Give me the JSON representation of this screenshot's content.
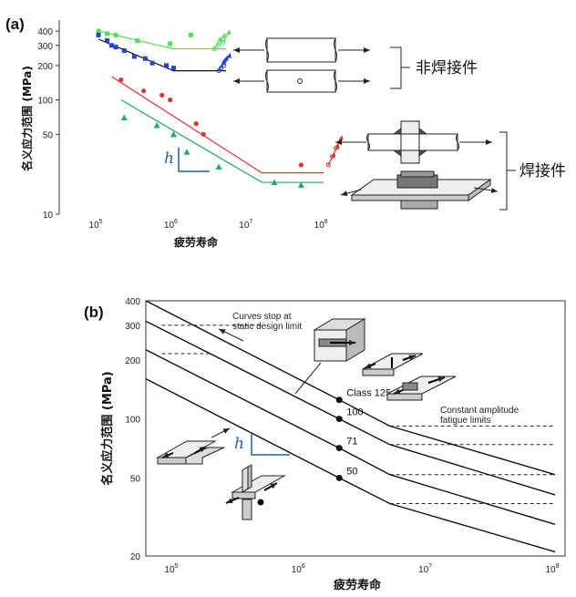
{
  "chart_data": [
    {
      "panel": "(a)",
      "type": "scatter",
      "scale": "log-log",
      "xlabel": "疲劳寿命",
      "ylabel": "名义应力范围 (MPa)",
      "xlim": [
        30000,
        200000000
      ],
      "ylim": [
        10,
        500
      ],
      "xticks": [
        {
          "v": 100000,
          "b": "10",
          "e": "5"
        },
        {
          "v": 1000000,
          "b": "10",
          "e": "6"
        },
        {
          "v": 10000000,
          "b": "10",
          "e": "7"
        },
        {
          "v": 100000000,
          "b": "10",
          "e": "8"
        }
      ],
      "yticks": [
        {
          "v": 10,
          "t": "10"
        },
        {
          "v": 50,
          "t": "50"
        },
        {
          "v": 100,
          "t": "100"
        },
        {
          "v": 200,
          "t": "200"
        },
        {
          "v": 300,
          "t": "300"
        },
        {
          "v": 400,
          "t": "400"
        }
      ],
      "series": [
        {
          "color": "#55dd55",
          "marker": "square",
          "points": [
            [
              100000,
              400
            ],
            [
              130000,
              380
            ],
            [
              170000,
              370
            ],
            [
              330000,
              330
            ],
            [
              900000,
              310
            ],
            [
              1700000,
              370
            ]
          ],
          "fit": [
            [
              100000,
              400
            ],
            [
              1000000,
              280
            ],
            [
              5000000,
              280
            ]
          ],
          "runouts": [
            [
              3500000,
              280
            ],
            [
              4000000,
              300
            ],
            [
              4600000,
              320
            ]
          ]
        },
        {
          "color": "#2244cc",
          "marker": "square",
          "points": [
            [
              100000,
              370
            ],
            [
              130000,
              330
            ],
            [
              150000,
              300
            ],
            [
              170000,
              290
            ],
            [
              220000,
              270
            ],
            [
              300000,
              240
            ],
            [
              420000,
              230
            ],
            [
              520000,
              210
            ],
            [
              800000,
              200
            ],
            [
              1000000,
              190
            ]
          ],
          "fit": [
            [
              100000,
              340
            ],
            [
              1000000,
              180
            ],
            [
              5000000,
              180
            ]
          ],
          "runouts": [
            [
              4000000,
              180
            ],
            [
              4300000,
              190
            ],
            [
              4700000,
              200
            ]
          ]
        },
        {
          "color": "#dd3333",
          "marker": "circle",
          "points": [
            [
              200000,
              150
            ],
            [
              400000,
              120
            ],
            [
              700000,
              110
            ],
            [
              900000,
              100
            ],
            [
              2000000,
              62
            ],
            [
              2500000,
              50
            ],
            [
              50000000,
              27
            ]
          ],
          "fit": [
            [
              150000,
              160
            ],
            [
              15000000,
              23
            ],
            [
              100000000,
              23
            ]
          ],
          "runouts": [
            [
              115000000,
              27
            ],
            [
              130000000,
              32
            ],
            [
              145000000,
              38
            ]
          ]
        },
        {
          "color": "#22aa66",
          "marker": "triangle",
          "points": [
            [
              220000,
              70
            ],
            [
              600000,
              60
            ],
            [
              1000000,
              50
            ],
            [
              1500000,
              35
            ],
            [
              4000000,
              26
            ],
            [
              22000000,
              19
            ],
            [
              50000000,
              18
            ]
          ],
          "fit": [
            [
              200000,
              100
            ],
            [
              15000000,
              19
            ],
            [
              100000000,
              19
            ]
          ],
          "runouts": []
        }
      ],
      "annotations": [
        "h"
      ],
      "group_labels": [
        "非焊接件",
        "焊接件"
      ]
    },
    {
      "panel": "(b)",
      "type": "line",
      "scale": "log-log",
      "xlabel": "疲劳寿命",
      "ylabel": "名义应力范围 (MPa)",
      "xlim": [
        60000,
        120000000
      ],
      "ylim": [
        20,
        400
      ],
      "xticks": [
        {
          "v": 100000,
          "b": "10",
          "e": "5"
        },
        {
          "v": 1000000,
          "b": "10",
          "e": "6"
        },
        {
          "v": 10000000,
          "b": "10",
          "e": "7"
        },
        {
          "v": 100000000,
          "b": "10",
          "e": "8"
        }
      ],
      "yticks": [
        {
          "v": 20,
          "t": "20"
        },
        {
          "v": 50,
          "t": "50"
        },
        {
          "v": 100,
          "t": "100"
        },
        {
          "v": 200,
          "t": "200"
        },
        {
          "v": 300,
          "t": "300"
        },
        {
          "v": 400,
          "t": "400"
        }
      ],
      "series": [
        {
          "name": "Class 125",
          "points": [
            [
              60000,
              400
            ],
            [
              2000000,
              125
            ],
            [
              5000000,
              92
            ],
            [
              100000000,
              52
            ]
          ],
          "dot": [
            2000000,
            125
          ],
          "cutoff": [
            [
              5000000,
              92
            ],
            [
              100000000,
              92
            ]
          ]
        },
        {
          "name": "100",
          "points": [
            [
              60000,
              315
            ],
            [
              2000000,
              100
            ],
            [
              5000000,
              74
            ],
            [
              100000000,
              41
            ]
          ],
          "dot": [
            2000000,
            100
          ],
          "cutoff": [
            [
              5000000,
              74
            ],
            [
              100000000,
              74
            ]
          ]
        },
        {
          "name": "71",
          "points": [
            [
              60000,
              225
            ],
            [
              2000000,
              71
            ],
            [
              5000000,
              52
            ],
            [
              100000000,
              29
            ]
          ],
          "dot": [
            2000000,
            71
          ],
          "cutoff": [
            [
              5000000,
              52
            ],
            [
              100000000,
              52
            ]
          ]
        },
        {
          "name": "50",
          "points": [
            [
              60000,
              160
            ],
            [
              2000000,
              50
            ],
            [
              5000000,
              37
            ],
            [
              100000000,
              21
            ]
          ],
          "dot": [
            2000000,
            50
          ],
          "cutoff": [
            [
              5000000,
              37
            ],
            [
              100000000,
              37
            ]
          ]
        }
      ],
      "static_limits": [
        {
          "x": [
            80000,
            500000
          ],
          "y": 300
        },
        {
          "x": [
            80000,
            200000
          ],
          "y": 215
        }
      ],
      "annotations": {
        "curves_stop": "Curves stop at static design limit",
        "const_amp": "Constant amplitude fatigue limits",
        "h": "h"
      }
    }
  ]
}
